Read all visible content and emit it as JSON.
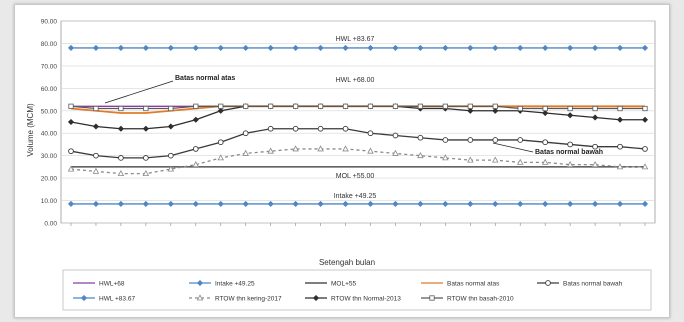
{
  "chart_data": {
    "type": "line",
    "xlabel": "Setengah bulan",
    "ylabel": "Volume (MCM)",
    "ylim": [
      0,
      90
    ],
    "yticks": [
      "0.00",
      "10.00",
      "20.00",
      "30.00",
      "40.00",
      "50.00",
      "60.00",
      "70.00",
      "80.00",
      "90.00"
    ],
    "n_points": 24,
    "series": [
      {
        "name": "HWL+68",
        "color": "#8a3fa0",
        "marker": "none",
        "dash": "",
        "values": [
          52,
          52,
          52,
          52,
          52,
          52,
          52,
          52,
          52,
          52,
          52,
          52,
          52,
          52,
          52,
          52,
          52,
          52,
          52,
          52,
          52,
          52,
          52,
          52
        ]
      },
      {
        "name": "Intake +49.25",
        "color": "#4f86c6",
        "marker": "diamond",
        "dash": "",
        "values": [
          8.5,
          8.5,
          8.5,
          8.5,
          8.5,
          8.5,
          8.5,
          8.5,
          8.5,
          8.5,
          8.5,
          8.5,
          8.5,
          8.5,
          8.5,
          8.5,
          8.5,
          8.5,
          8.5,
          8.5,
          8.5,
          8.5,
          8.5,
          8.5
        ]
      },
      {
        "name": "MOL+55",
        "color": "#303030",
        "marker": "none",
        "dash": "",
        "values": [
          25,
          25,
          25,
          25,
          25,
          25,
          25,
          25,
          25,
          25,
          25,
          25,
          25,
          25,
          25,
          25,
          25,
          25,
          25,
          25,
          25,
          25,
          25,
          25
        ]
      },
      {
        "name": "Batas normal atas",
        "color": "#e07b2a",
        "marker": "none",
        "dash": "",
        "values": [
          51,
          50,
          49,
          49,
          50,
          51,
          52,
          52,
          52,
          52,
          52,
          52,
          52,
          52,
          52,
          52,
          52,
          52,
          52,
          52,
          52,
          52,
          52,
          52
        ]
      },
      {
        "name": "Batas normal bawah",
        "color": "#3a3a3a",
        "marker": "circle-open",
        "dash": "",
        "values": [
          32,
          30,
          29,
          29,
          30,
          33,
          36,
          40,
          42,
          42,
          42,
          42,
          40,
          39,
          38,
          37,
          37,
          37,
          37,
          36,
          35,
          34,
          34,
          33
        ]
      },
      {
        "name": "HWL +83.67",
        "color": "#4f86c6",
        "marker": "diamond",
        "dash": "",
        "values": [
          78,
          78,
          78,
          78,
          78,
          78,
          78,
          78,
          78,
          78,
          78,
          78,
          78,
          78,
          78,
          78,
          78,
          78,
          78,
          78,
          78,
          78,
          78,
          78
        ]
      },
      {
        "name": "RTOW thn kering-2017",
        "color": "#8a8a8a",
        "marker": "triangle-open",
        "dash": "3,3",
        "values": [
          24,
          23,
          22,
          22,
          24,
          26,
          29,
          31,
          32,
          33,
          33,
          33,
          32,
          31,
          30,
          29,
          28,
          28,
          27,
          27,
          26,
          26,
          25,
          25
        ]
      },
      {
        "name": "RTOW thn Normal-2013",
        "color": "#2e2e2e",
        "marker": "diamond",
        "dash": "",
        "values": [
          45,
          43,
          42,
          42,
          43,
          46,
          50,
          52,
          52,
          52,
          52,
          52,
          52,
          52,
          51,
          51,
          50,
          50,
          50,
          49,
          48,
          47,
          46,
          46
        ]
      },
      {
        "name": "RTOW thn basah-2010",
        "color": "#5a5a5a",
        "marker": "square-open",
        "dash": "",
        "values": [
          52,
          51,
          51,
          51,
          51,
          52,
          52,
          52,
          52,
          52,
          52,
          52,
          52,
          52,
          52,
          52,
          52,
          52,
          51,
          51,
          51,
          51,
          51,
          51
        ]
      }
    ],
    "annotations": [
      {
        "text": "HWL +83.67"
      },
      {
        "text": "HWL +68.00"
      },
      {
        "text": "Batas normal atas"
      },
      {
        "text": "Batas normal bawah"
      },
      {
        "text": "MOL +55.00"
      },
      {
        "text": "Intake +49.25"
      }
    ]
  }
}
